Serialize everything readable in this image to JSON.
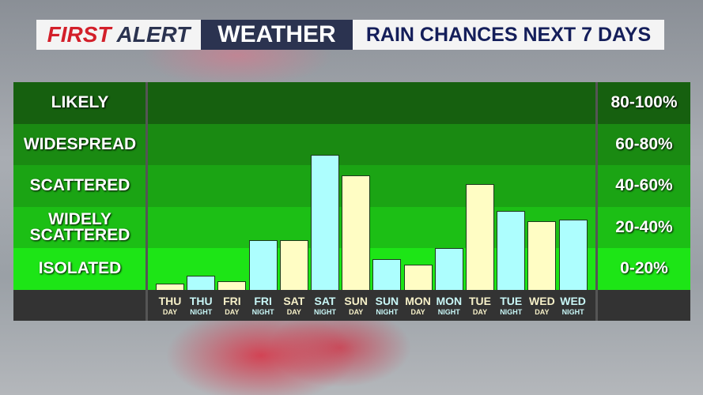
{
  "header": {
    "first": "FIRST",
    "alert": "ALERT",
    "weather": "WEATHER",
    "title": "RAIN CHANCES NEXT 7 DAYS"
  },
  "chart_data": {
    "type": "bar",
    "title": "RAIN CHANCES NEXT 7 DAYS",
    "ylim": [
      0,
      100
    ],
    "categories": [
      [
        "THU",
        "DAY"
      ],
      [
        "THU",
        "NIGHT"
      ],
      [
        "FRI",
        "DAY"
      ],
      [
        "FRI",
        "NIGHT"
      ],
      [
        "SAT",
        "DAY"
      ],
      [
        "SAT",
        "NIGHT"
      ],
      [
        "SUN",
        "DAY"
      ],
      [
        "SUN",
        "NIGHT"
      ],
      [
        "MON",
        "DAY"
      ],
      [
        "MON",
        "NIGHT"
      ],
      [
        "TUE",
        "DAY"
      ],
      [
        "TUE",
        "NIGHT"
      ],
      [
        "WED",
        "DAY"
      ],
      [
        "WED",
        "NIGHT"
      ]
    ],
    "values": [
      3,
      7,
      4,
      24,
      24,
      65,
      55,
      15,
      12,
      20,
      51,
      38,
      33,
      34
    ],
    "bands": [
      {
        "label": "LIKELY",
        "range": "80-100%",
        "color": "#16600f"
      },
      {
        "label": "WIDESPREAD",
        "range": "60-80%",
        "color": "#1a8a12"
      },
      {
        "label": "SCATTERED",
        "range": "40-60%",
        "color": "#1ba414"
      },
      {
        "label": "WIDELY SCATTERED",
        "range": "20-40%",
        "color": "#1cbf15"
      },
      {
        "label": "ISOLATED",
        "range": "0-20%",
        "color": "#1de516"
      }
    ],
    "colors": {
      "day": "#fffdc4",
      "night": "#adfefe",
      "day_label": "#f6f0c8",
      "night_label": "#c8f6f6"
    }
  }
}
